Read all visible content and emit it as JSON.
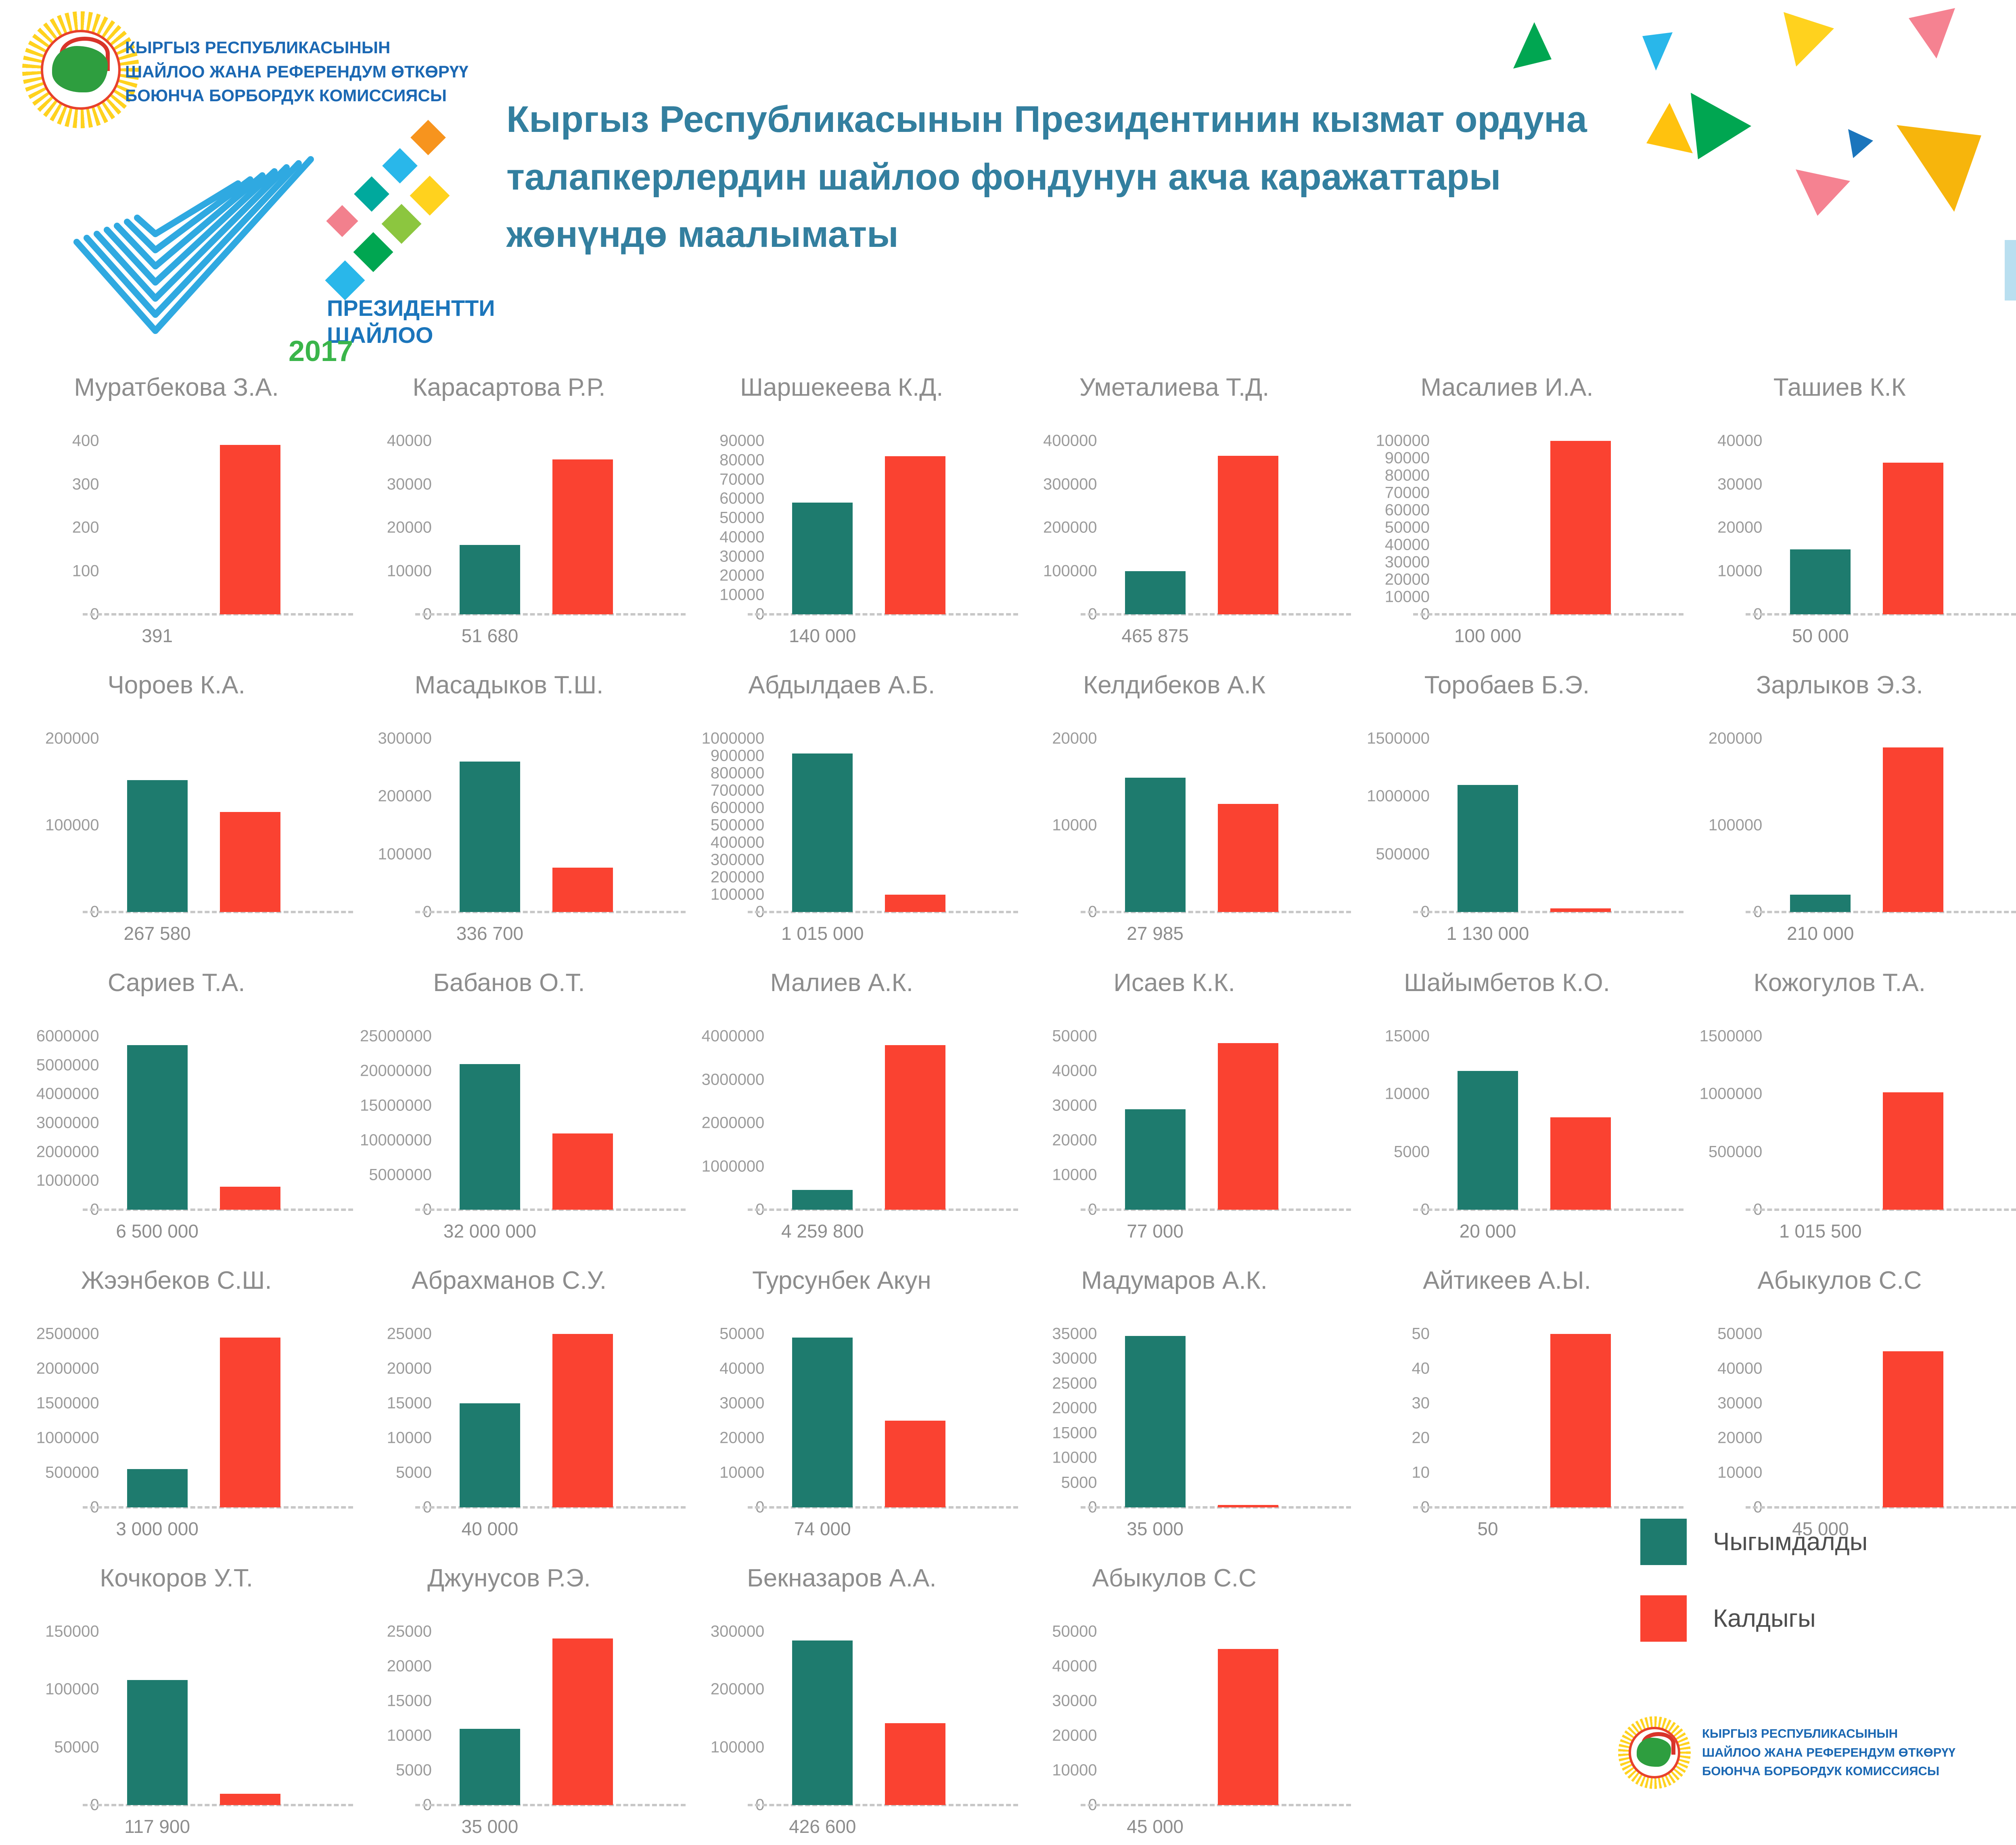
{
  "header": {
    "commission_lines": [
      "КЫРГЫЗ РЕСПУБЛИКАСЫНЫН",
      "ШАЙЛОО ЖАНА РЕФЕРЕНДУМ ӨТКӨРҮҮ",
      "БОЮНЧА БОРБОРДУК КОМИССИЯСЫ"
    ],
    "election_logo": {
      "line1": "ПРЕЗИДЕНТТИ",
      "line2": "ШАЙЛОО",
      "year": "2017"
    },
    "title": "Кыргыз Республикасынын Президентинин кызмат ордуна талапкерлердин шайлоо фондунун акча каражаттары жөнүндө маалыматы"
  },
  "legend": {
    "spent_label": "Чыгымдалды",
    "rest_label": "Калдыгы"
  },
  "footer": {
    "commission_lines": [
      "КЫРГЫЗ РЕСПУБЛИКАСЫНЫН",
      "ШАЙЛОО ЖАНА РЕФЕРЕНДУМ ӨТКӨРҮҮ",
      "БОЮНЧА БОРБОРДУК КОМИССИЯСЫ"
    ]
  },
  "colors": {
    "spent": "#1e7b6e",
    "rest": "#fa4231",
    "title_teal": "#337f9f",
    "commission_blue": "#1b68b3",
    "chart_title_gray": "#8d8d8d",
    "tick_gray": "#9b9b9b"
  },
  "chart_data": {
    "type": "bar",
    "series_names": [
      "Чыгымдалды",
      "Калдыгы"
    ],
    "legend_position": "bottom-right",
    "grid": false,
    "charts": [
      {
        "name": "Муратбекова З.А.",
        "ymax": 400,
        "yticks": [
          400,
          300,
          200,
          100,
          0
        ],
        "spent": 0,
        "rest": 391,
        "xlabel": "391"
      },
      {
        "name": "Карасартова Р.Р.",
        "ymax": 40000,
        "yticks": [
          40000,
          30000,
          20000,
          10000,
          0
        ],
        "spent": 16000,
        "rest": 35680,
        "xlabel": "51 680"
      },
      {
        "name": "Шаршекеева К.Д.",
        "ymax": 90000,
        "yticks": [
          90000,
          80000,
          70000,
          60000,
          50000,
          40000,
          30000,
          20000,
          10000,
          0
        ],
        "spent": 58000,
        "rest": 82000,
        "xlabel": "140 000"
      },
      {
        "name": "Уметалиева Т.Д.",
        "ymax": 400000,
        "yticks": [
          400000,
          300000,
          200000,
          100000,
          0
        ],
        "spent": 100000,
        "rest": 365875,
        "xlabel": "465 875"
      },
      {
        "name": "Масалиев И.А.",
        "ymax": 100000,
        "yticks": [
          100000,
          90000,
          80000,
          70000,
          60000,
          50000,
          40000,
          30000,
          20000,
          10000,
          0
        ],
        "spent": 0,
        "rest": 100000,
        "xlabel": "100 000"
      },
      {
        "name": "Ташиев К.К",
        "ymax": 40000,
        "yticks": [
          40000,
          30000,
          20000,
          10000,
          0
        ],
        "spent": 15000,
        "rest": 35000,
        "xlabel": "50 000"
      },
      {
        "name": "Чороев К.А.",
        "ymax": 200000,
        "yticks": [
          200000,
          100000,
          0
        ],
        "spent": 152000,
        "rest": 115580,
        "xlabel": "267 580"
      },
      {
        "name": "Масадыков Т.Ш.",
        "ymax": 300000,
        "yticks": [
          300000,
          200000,
          100000,
          0
        ],
        "spent": 260000,
        "rest": 76700,
        "xlabel": "336 700"
      },
      {
        "name": "Абдылдаев А.Б.",
        "ymax": 1000000,
        "yticks": [
          1000000,
          900000,
          800000,
          700000,
          600000,
          500000,
          400000,
          300000,
          200000,
          100000,
          0
        ],
        "spent": 915000,
        "rest": 100000,
        "xlabel": "1 015 000"
      },
      {
        "name": "Келдибеков А.К",
        "ymax": 20000,
        "yticks": [
          20000,
          10000,
          0
        ],
        "spent": 15500,
        "rest": 12485,
        "xlabel": "27 985"
      },
      {
        "name": "Торобаев Б.Э.",
        "ymax": 1500000,
        "yticks": [
          1500000,
          1000000,
          500000,
          0
        ],
        "spent": 1100000,
        "rest": 30000,
        "xlabel": "1 130 000"
      },
      {
        "name": "Зарлыков Э.З.",
        "ymax": 200000,
        "yticks": [
          200000,
          100000,
          0
        ],
        "spent": 20000,
        "rest": 190000,
        "xlabel": "210 000"
      },
      {
        "name": "Сариев Т.А.",
        "ymax": 6000000,
        "yticks": [
          6000000,
          5000000,
          4000000,
          3000000,
          2000000,
          1000000,
          0
        ],
        "spent": 5700000,
        "rest": 800000,
        "xlabel": "6 500 000"
      },
      {
        "name": "Бабанов О.Т.",
        "ymax": 25000000,
        "yticks": [
          25000000,
          20000000,
          15000000,
          10000000,
          5000000,
          0
        ],
        "spent": 21000000,
        "rest": 11000000,
        "xlabel": "32 000 000"
      },
      {
        "name": "Малиев А.К.",
        "ymax": 4000000,
        "yticks": [
          4000000,
          3000000,
          2000000,
          1000000,
          0
        ],
        "spent": 459800,
        "rest": 3800000,
        "xlabel": "4 259 800"
      },
      {
        "name": "Исаев К.К.",
        "ymax": 50000,
        "yticks": [
          50000,
          40000,
          30000,
          20000,
          10000,
          0
        ],
        "spent": 29000,
        "rest": 48000,
        "xlabel": "77 000"
      },
      {
        "name": "Шайымбетов К.О.",
        "ymax": 15000,
        "yticks": [
          15000,
          10000,
          5000,
          0
        ],
        "spent": 12000,
        "rest": 8000,
        "xlabel": "20 000"
      },
      {
        "name": "Кожогулов Т.А.",
        "ymax": 1500000,
        "yticks": [
          1500000,
          1000000,
          500000,
          0
        ],
        "spent": 0,
        "rest": 1015500,
        "xlabel": "1 015 500"
      },
      {
        "name": "Жээнбеков С.Ш.",
        "ymax": 2500000,
        "yticks": [
          2500000,
          2000000,
          1500000,
          1000000,
          500000,
          0
        ],
        "spent": 550000,
        "rest": 2450000,
        "xlabel": "3 000 000"
      },
      {
        "name": "Абрахманов С.У.",
        "ymax": 25000,
        "yticks": [
          25000,
          20000,
          15000,
          10000,
          5000,
          0
        ],
        "spent": 15000,
        "rest": 25000,
        "xlabel": "40 000"
      },
      {
        "name": "Турсунбек Акун",
        "ymax": 50000,
        "yticks": [
          50000,
          40000,
          30000,
          20000,
          10000,
          0
        ],
        "spent": 49000,
        "rest": 25000,
        "xlabel": "74 000"
      },
      {
        "name": "Мадумаров А.К.",
        "ymax": 35000,
        "yticks": [
          35000,
          30000,
          25000,
          20000,
          15000,
          10000,
          5000,
          0
        ],
        "spent": 34600,
        "rest": 400,
        "xlabel": "35 000"
      },
      {
        "name": "Айтикеев А.Ы.",
        "ymax": 50,
        "yticks": [
          50,
          40,
          30,
          20,
          10,
          0
        ],
        "spent": 0,
        "rest": 50,
        "xlabel": "50"
      },
      {
        "name": "Абыкулов С.С",
        "ymax": 50000,
        "yticks": [
          50000,
          40000,
          30000,
          20000,
          10000,
          0
        ],
        "spent": 0,
        "rest": 45000,
        "xlabel": "45 000"
      },
      {
        "name": "Кочкоров У.Т.",
        "ymax": 150000,
        "yticks": [
          150000,
          100000,
          50000,
          0
        ],
        "spent": 108000,
        "rest": 9900,
        "xlabel": "117 900"
      },
      {
        "name": "Джунусов Р.Э.",
        "ymax": 25000,
        "yticks": [
          25000,
          20000,
          15000,
          10000,
          5000,
          0
        ],
        "spent": 11000,
        "rest": 24000,
        "xlabel": "35 000"
      },
      {
        "name": "Бекназаров А.А.",
        "ymax": 300000,
        "yticks": [
          300000,
          200000,
          100000,
          0
        ],
        "spent": 285000,
        "rest": 141600,
        "xlabel": "426 600"
      },
      {
        "name": "Абыкулов С.С",
        "ymax": 50000,
        "yticks": [
          50000,
          40000,
          30000,
          20000,
          10000,
          0
        ],
        "spent": 0,
        "rest": 45000,
        "xlabel": "45 000"
      }
    ]
  }
}
